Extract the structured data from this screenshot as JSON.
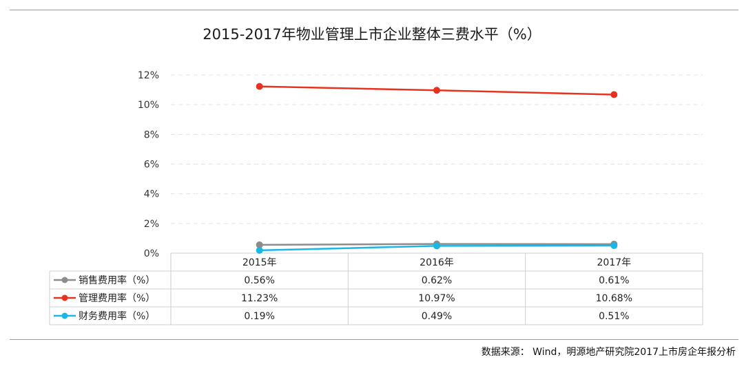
{
  "chart_data": {
    "type": "line",
    "title": "2015-2017年物业管理上市企业整体三费水平（%）",
    "categories": [
      "2015年",
      "2016年",
      "2017年"
    ],
    "y_ticks": [
      "12%",
      "10%",
      "8%",
      "6%",
      "4%",
      "2%",
      "0%"
    ],
    "ylim": [
      0,
      12
    ],
    "grid": "horizontal dashed",
    "legend": "data table rows",
    "series": [
      {
        "name": "销售费用率（%）",
        "color": "#8c8c8c",
        "values": [
          0.56,
          0.62,
          0.61
        ],
        "labels": [
          "0.56%",
          "0.62%",
          "0.61%"
        ]
      },
      {
        "name": "管理费用率（%）",
        "color": "#e8321e",
        "values": [
          11.23,
          10.97,
          10.68
        ],
        "labels": [
          "11.23%",
          "10.97%",
          "10.68%"
        ]
      },
      {
        "name": "财务费用率（%）",
        "color": "#1bb6e6",
        "values": [
          0.19,
          0.49,
          0.51
        ],
        "labels": [
          "0.19%",
          "0.49%",
          "0.51%"
        ]
      }
    ]
  },
  "source": "数据来源： Wind，明源地产研究院2017上市房企年报分析"
}
